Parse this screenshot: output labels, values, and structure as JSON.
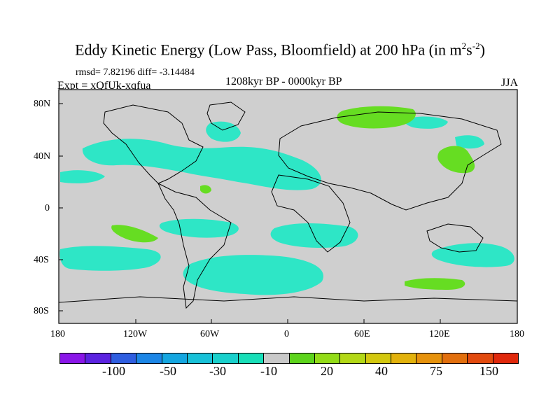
{
  "title": {
    "main": "Eddy Kinetic Energy (Low Pass, Bloomfield) at 200 hPa (in m",
    "sup1": "2",
    "mid": "s",
    "sup2": "-2",
    "end": ")"
  },
  "stats": {
    "rmsd": "rmsd= 7.82196 diff= -3.14484"
  },
  "experiment": "Expt = xQfUk-xqfua",
  "period": "1208kyr BP - 0000kyr BP",
  "season": "JJA",
  "lat_labels": [
    "80N",
    "40N",
    "0",
    "40S",
    "80S"
  ],
  "lon_labels": [
    "180",
    "120W",
    "60W",
    "0",
    "60E",
    "120E",
    "180"
  ],
  "colorbar": {
    "labels": [
      "-100",
      "-50",
      "-30",
      "-10",
      "20",
      "40",
      "75",
      "150"
    ],
    "colors": [
      "#8a16e8",
      "#5b23e0",
      "#2f5ee0",
      "#1c86e6",
      "#14a6e0",
      "#18c1d8",
      "#19d0cc",
      "#18deb8",
      "#c9c9c9",
      "#5dd41c",
      "#93dc18",
      "#b3d816",
      "#d3c80f",
      "#e2b20c",
      "#e6920c",
      "#e26f0d",
      "#e24a0e",
      "#e0280c"
    ]
  },
  "colors": {
    "teal": "#2ee6c6",
    "green": "#66dd22",
    "ocean": "#cfcfcf"
  }
}
